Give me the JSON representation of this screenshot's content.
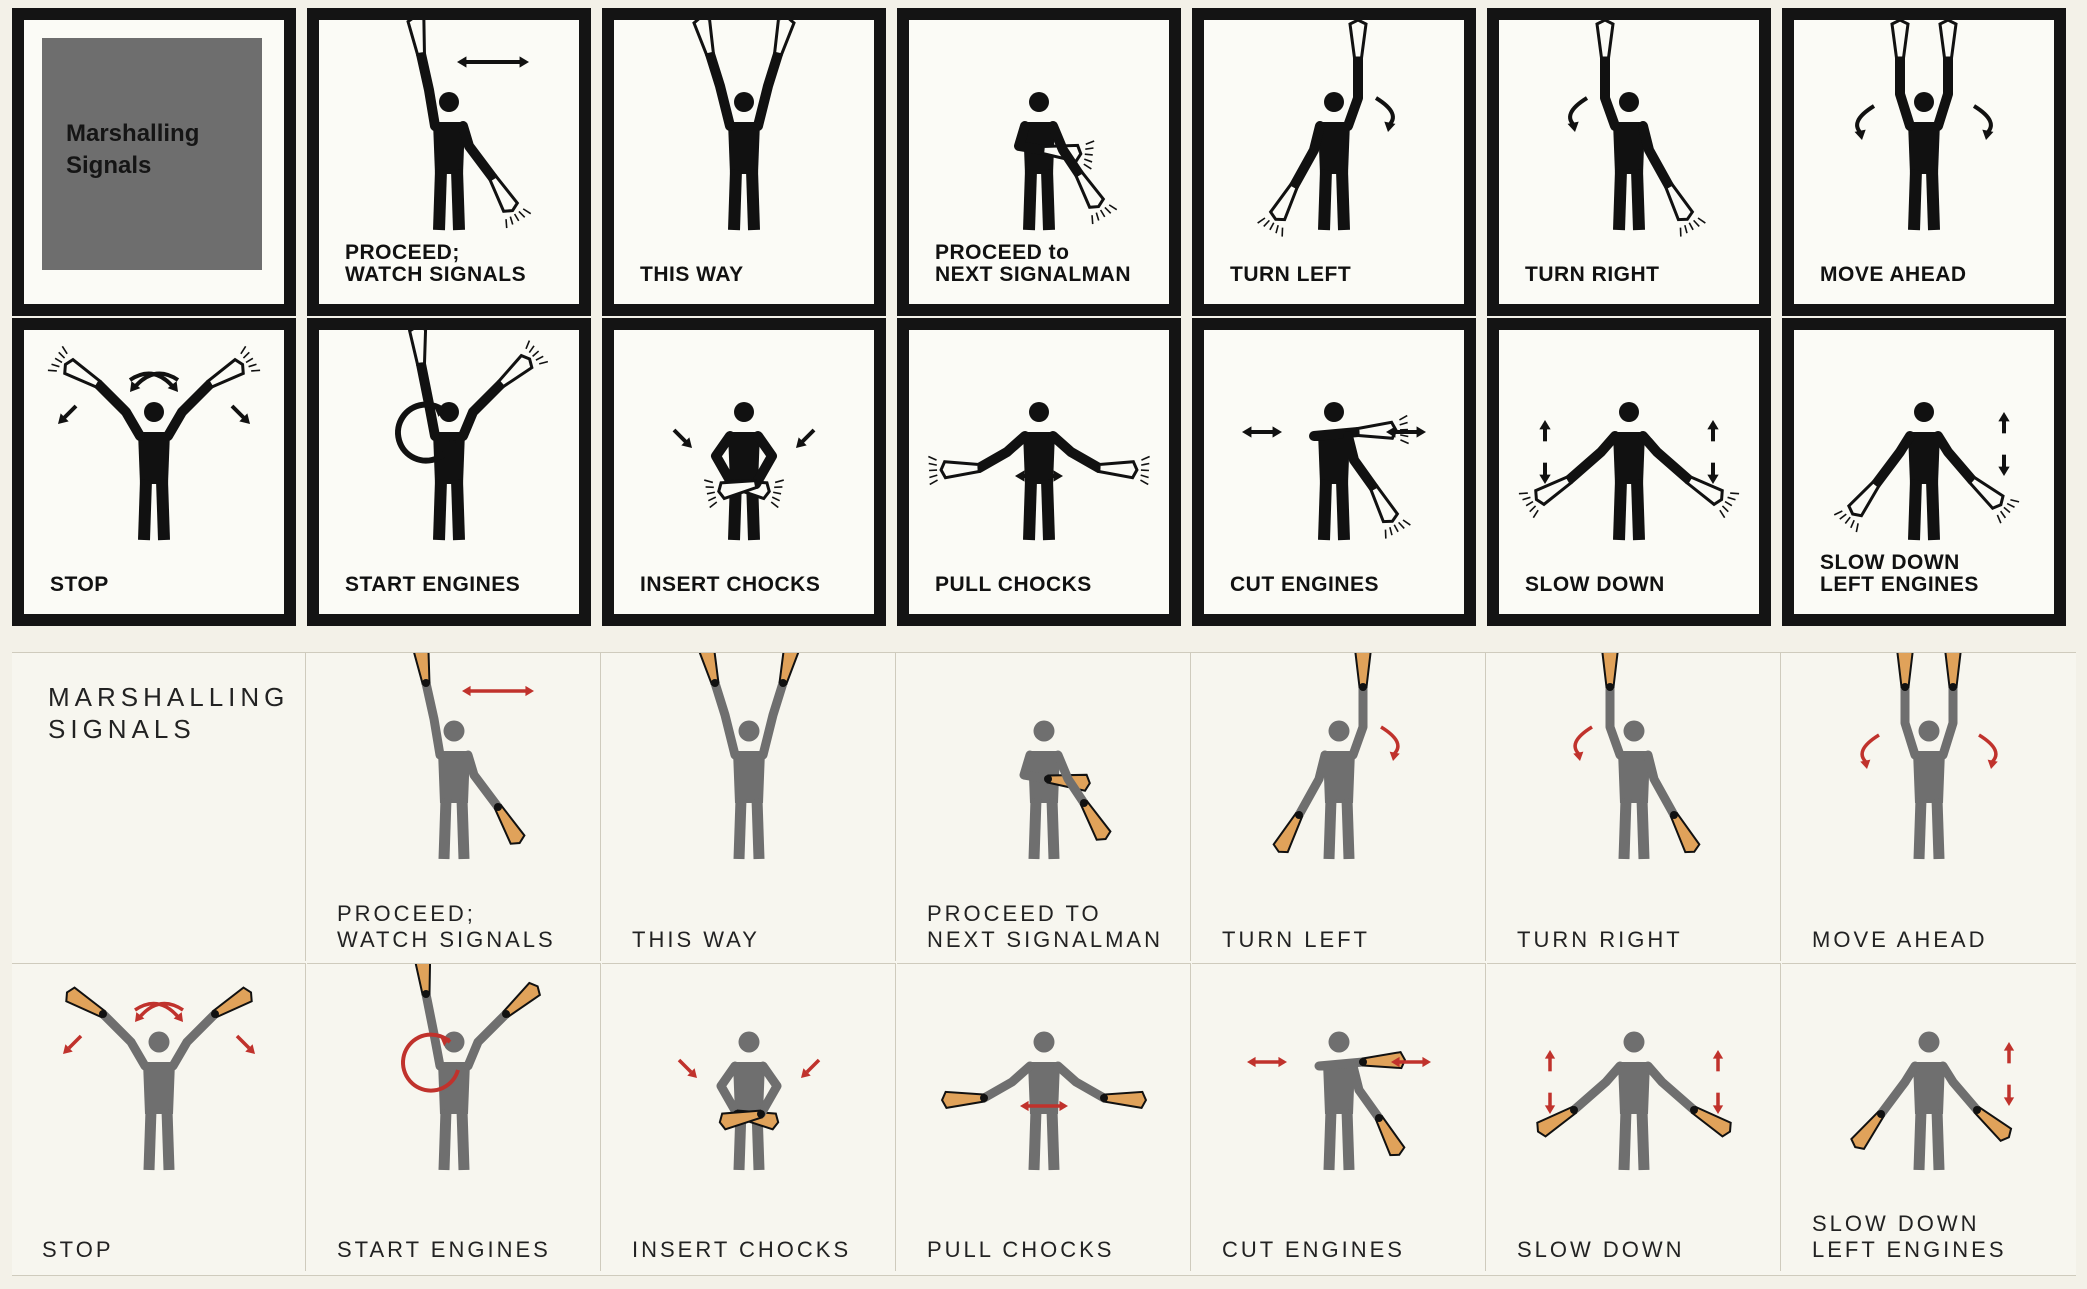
{
  "top_panel": {
    "title": "Marshalling\nSignals",
    "row1": [
      {
        "id": "proceed",
        "label": "PROCEED;\nWATCH SIGNALS"
      },
      {
        "id": "this-way",
        "label": "THIS WAY"
      },
      {
        "id": "next-signalman",
        "label": "PROCEED to\nNEXT SIGNALMAN"
      },
      {
        "id": "turn-left",
        "label": "TURN LEFT"
      },
      {
        "id": "turn-right",
        "label": "TURN RIGHT"
      },
      {
        "id": "move-ahead",
        "label": "MOVE AHEAD"
      }
    ],
    "row2": [
      {
        "id": "stop",
        "label": "STOP"
      },
      {
        "id": "start-engines",
        "label": "START ENGINES"
      },
      {
        "id": "insert-chocks",
        "label": "INSERT CHOCKS"
      },
      {
        "id": "pull-chocks",
        "label": "PULL CHOCKS"
      },
      {
        "id": "cut-engines",
        "label": "CUT ENGINES"
      },
      {
        "id": "slow-down",
        "label": "SLOW DOWN"
      },
      {
        "id": "slow-down-left",
        "label": "SLOW DOWN\nLEFT ENGINES"
      }
    ]
  },
  "bottom_panel": {
    "title": "MARSHALLING\nSIGNALS",
    "row1": [
      {
        "id": "proceed",
        "label": "PROCEED;\nWATCH SIGNALS"
      },
      {
        "id": "this-way",
        "label": "THIS WAY"
      },
      {
        "id": "next-signalman",
        "label": "PROCEED TO\nNEXT SIGNALMAN"
      },
      {
        "id": "turn-left",
        "label": "TURN LEFT"
      },
      {
        "id": "turn-right",
        "label": "TURN RIGHT"
      },
      {
        "id": "move-ahead",
        "label": "MOVE AHEAD"
      }
    ],
    "row2": [
      {
        "id": "stop",
        "label": "STOP"
      },
      {
        "id": "start-engines",
        "label": "START ENGINES"
      },
      {
        "id": "insert-chocks",
        "label": "INSERT CHOCKS"
      },
      {
        "id": "pull-chocks",
        "label": "PULL CHOCKS"
      },
      {
        "id": "cut-engines",
        "label": "CUT ENGINES"
      },
      {
        "id": "slow-down",
        "label": "SLOW DOWN"
      },
      {
        "id": "slow-down-left",
        "label": "SLOW DOWN\nLEFT ENGINES"
      }
    ]
  },
  "colors": {
    "old_figure": "#111111",
    "old_frame": "#141414",
    "title_box": "#6e6e6e",
    "new_figure": "#6f6f6f",
    "wand_body": "#e0a25a",
    "wand_tip": "#111111",
    "arrow": "#c0322c"
  },
  "icons": {
    "figure": "signalman-figure-icon",
    "wand": "marshalling-wand-icon",
    "arrow": "motion-arrow-icon"
  }
}
